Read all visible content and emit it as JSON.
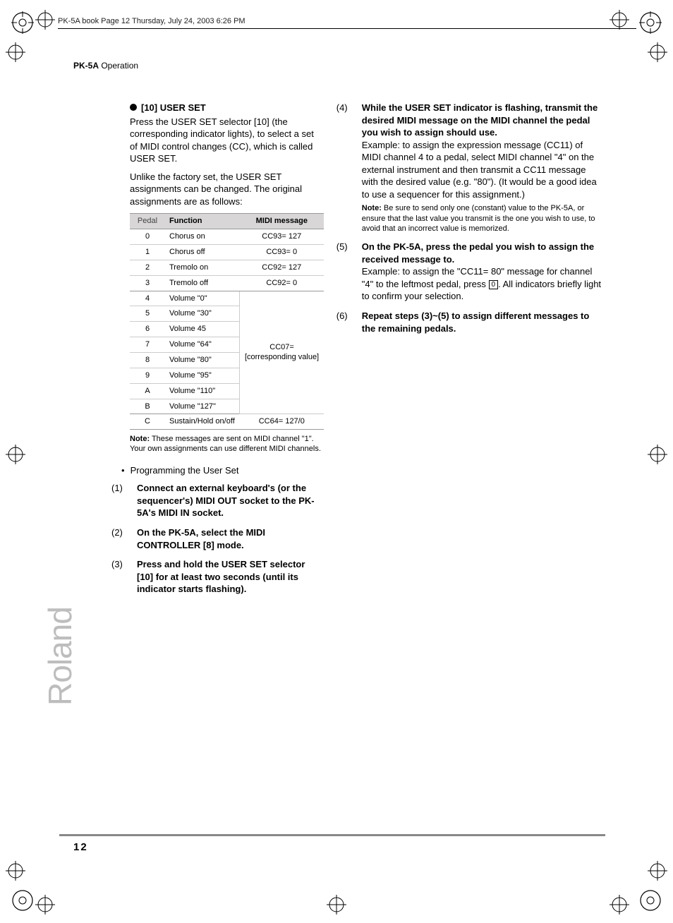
{
  "meta": {
    "header_text": "PK-5A book  Page 12  Thursday, July 24, 2003  6:26 PM",
    "section_label_bold": "PK-5A",
    "section_label_rest": " Operation",
    "page_number": "12",
    "brand": "Roland"
  },
  "colors": {
    "text": "#000000",
    "grey_text": "#444444",
    "table_header_bg": "#d8d6d6",
    "rule_grey": "#888888",
    "cell_border": "#cccccc",
    "brand_grey": "#bdbdbd",
    "background": "#ffffff"
  },
  "left": {
    "heading": "[10] USER SET",
    "p1": "Press the USER SET selector [10] (the corresponding indicator lights), to select a set of MIDI control changes (CC), which is called USER SET.",
    "p2": "Unlike the factory set, the USER SET assignments can be changed. The original assignments are as follows:",
    "table": {
      "columns": [
        "Pedal",
        "Function",
        "MIDI message"
      ],
      "rows_top": [
        {
          "pedal": "0",
          "func": "Chorus on",
          "msg": "CC93= 127"
        },
        {
          "pedal": "1",
          "func": "Chorus off",
          "msg": "CC93= 0"
        },
        {
          "pedal": "2",
          "func": "Tremolo on",
          "msg": "CC92= 127"
        },
        {
          "pedal": "3",
          "func": "Tremolo off",
          "msg": "CC92= 0"
        }
      ],
      "rows_mid": [
        {
          "pedal": "4",
          "func": "Volume \"0\""
        },
        {
          "pedal": "5",
          "func": "Volume \"30\""
        },
        {
          "pedal": "6",
          "func": "Volume 45"
        },
        {
          "pedal": "7",
          "func": "Volume \"64\""
        },
        {
          "pedal": "8",
          "func": "Volume \"80\""
        },
        {
          "pedal": "9",
          "func": "Volume \"95\""
        },
        {
          "pedal": "A",
          "func": "Volume \"110\""
        },
        {
          "pedal": "B",
          "func": "Volume \"127\""
        }
      ],
      "midspan_msg": "CC07=\n[corresponding value]",
      "rows_bot": [
        {
          "pedal": "C",
          "func": "Sustain/Hold on/off",
          "msg": "CC64= 127/0"
        }
      ]
    },
    "note_label": "Note:",
    "note_text": " These messages are sent on MIDI channel \"1\". Your own assignments can use different MIDI channels.",
    "bullet": "Programming the User Set",
    "steps": [
      {
        "n": "(1)",
        "lead": "Connect an external keyboard's (or the sequencer's) MIDI OUT socket to the PK-5A's MIDI IN socket."
      },
      {
        "n": "(2)",
        "lead": "On the PK-5A, select the MIDI CONTROLLER [8] mode."
      },
      {
        "n": "(3)",
        "lead": "Press and hold the USER SET selector [10] for at least two seconds (until its indicator starts flashing)."
      }
    ]
  },
  "right": {
    "steps": [
      {
        "n": "(4)",
        "lead": "While the USER SET indicator is flashing, transmit the desired MIDI message on the MIDI channel the pedal you wish to assign should use.",
        "tail": "Example: to assign the expression message (CC11) of MIDI channel 4 to a pedal, select MIDI channel \"4\" on the external instrument and then transmit a CC11 message with the desired value (e.g. \"80\"). (It would be a good idea to use a sequencer for this assignment.)",
        "note_label": "Note:",
        "note_text": " Be sure to send only one (constant) value to the PK-5A, or ensure that the last value you transmit is the one you wish to use, to avoid that an incorrect value is memorized."
      },
      {
        "n": "(5)",
        "lead": "On the PK-5A, press the pedal you wish to assign the received message to.",
        "tail_pre": "Example: to assign the \"CC11= 80\" message for channel \"4\" to the leftmost pedal, press ",
        "boxed": "0",
        "tail_post": ". All indicators briefly light to confirm your selection."
      },
      {
        "n": "(6)",
        "lead": "Repeat steps (3)~(5) to assign different messages to the remaining pedals."
      }
    ]
  }
}
